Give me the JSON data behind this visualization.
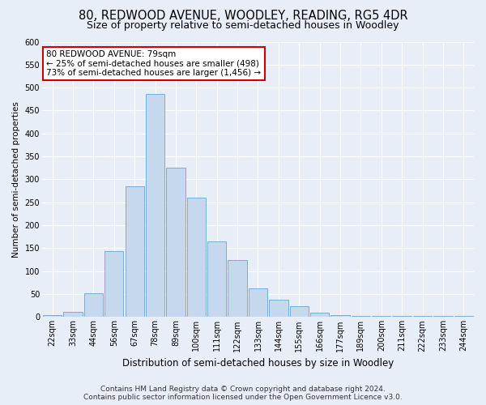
{
  "title": "80, REDWOOD AVENUE, WOODLEY, READING, RG5 4DR",
  "subtitle": "Size of property relative to semi-detached houses in Woodley",
  "xlabel": "Distribution of semi-detached houses by size in Woodley",
  "ylabel": "Number of semi-detached properties",
  "categories": [
    "22sqm",
    "33sqm",
    "44sqm",
    "56sqm",
    "67sqm",
    "78sqm",
    "89sqm",
    "100sqm",
    "111sqm",
    "122sqm",
    "133sqm",
    "144sqm",
    "155sqm",
    "166sqm",
    "177sqm",
    "189sqm",
    "200sqm",
    "211sqm",
    "222sqm",
    "233sqm",
    "244sqm"
  ],
  "values": [
    5,
    12,
    52,
    143,
    285,
    487,
    325,
    260,
    165,
    125,
    62,
    37,
    23,
    10,
    5,
    2,
    2,
    2,
    2,
    3,
    2
  ],
  "bar_color": "#c5d8ee",
  "bar_edge_color": "#7aadd4",
  "highlight_bar_index": 5,
  "annotation_text": "80 REDWOOD AVENUE: 79sqm\n← 25% of semi-detached houses are smaller (498)\n73% of semi-detached houses are larger (1,456) →",
  "annotation_box_color": "#ffffff",
  "annotation_box_edge_color": "#cc0000",
  "background_color": "#e8eef7",
  "grid_color": "#ffffff",
  "footer_line1": "Contains HM Land Registry data © Crown copyright and database right 2024.",
  "footer_line2": "Contains public sector information licensed under the Open Government Licence v3.0.",
  "ylim": [
    0,
    600
  ],
  "yticks": [
    0,
    50,
    100,
    150,
    200,
    250,
    300,
    350,
    400,
    450,
    500,
    550,
    600
  ],
  "title_fontsize": 10.5,
  "subtitle_fontsize": 9,
  "xlabel_fontsize": 8.5,
  "ylabel_fontsize": 7.5,
  "tick_fontsize": 7,
  "annotation_fontsize": 7.5,
  "footer_fontsize": 6.5
}
